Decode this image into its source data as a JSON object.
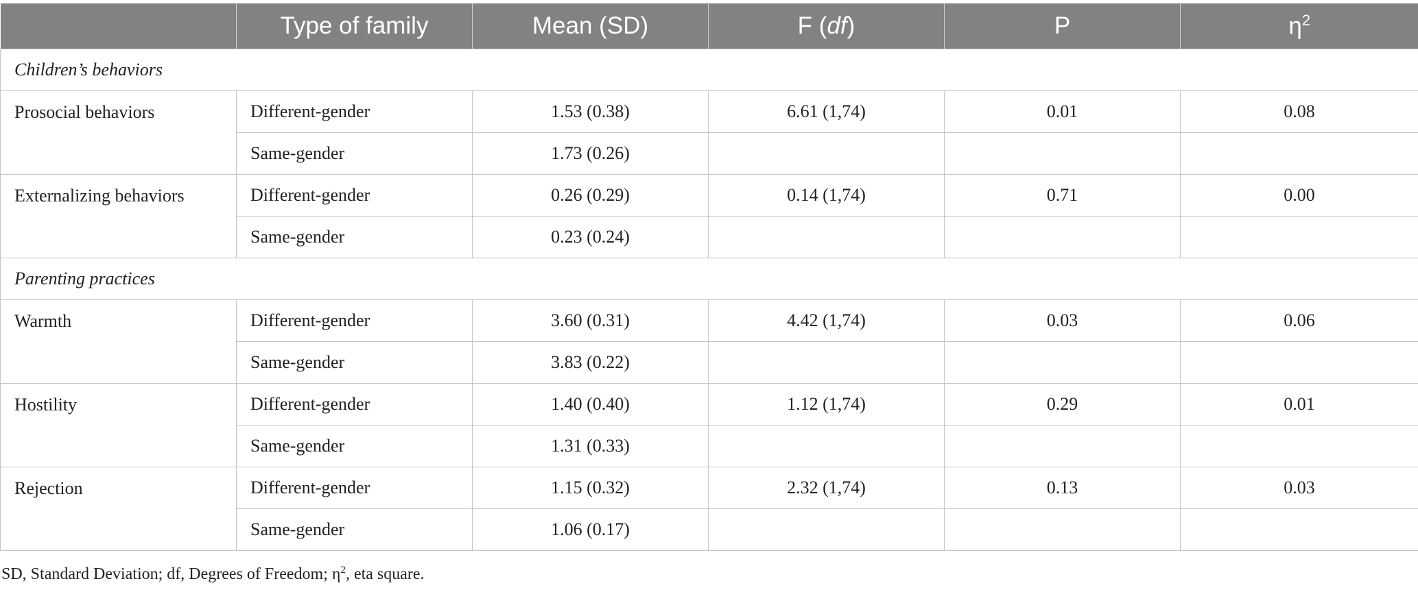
{
  "table": {
    "headers": [
      "",
      "Type of family",
      "Mean (SD)",
      "F",
      "P",
      "η"
    ],
    "header_f_italic_part": "df",
    "header_eta_superscript": "2",
    "sections": [
      {
        "label": "Children’s behaviors",
        "rows": [
          {
            "variable": "Prosocial behaviors",
            "groups": [
              {
                "family": "Different-gender",
                "mean_sd": "1.53 (0.38)",
                "f": "6.61 (1,74)",
                "p": "0.01",
                "eta2": "0.08"
              },
              {
                "family": "Same-gender",
                "mean_sd": "1.73 (0.26)",
                "f": "",
                "p": "",
                "eta2": ""
              }
            ]
          },
          {
            "variable": "Externalizing behaviors",
            "groups": [
              {
                "family": "Different-gender",
                "mean_sd": "0.26 (0.29)",
                "f": "0.14 (1,74)",
                "p": "0.71",
                "eta2": "0.00"
              },
              {
                "family": "Same-gender",
                "mean_sd": "0.23 (0.24)",
                "f": "",
                "p": "",
                "eta2": ""
              }
            ]
          }
        ]
      },
      {
        "label": "Parenting practices",
        "rows": [
          {
            "variable": "Warmth",
            "groups": [
              {
                "family": "Different-gender",
                "mean_sd": "3.60 (0.31)",
                "f": "4.42 (1,74)",
                "p": "0.03",
                "eta2": "0.06"
              },
              {
                "family": "Same-gender",
                "mean_sd": "3.83 (0.22)",
                "f": "",
                "p": "",
                "eta2": ""
              }
            ]
          },
          {
            "variable": "Hostility",
            "groups": [
              {
                "family": "Different-gender",
                "mean_sd": "1.40 (0.40)",
                "f": "1.12 (1,74)",
                "p": "0.29",
                "eta2": "0.01"
              },
              {
                "family": "Same-gender",
                "mean_sd": "1.31 (0.33)",
                "f": "",
                "p": "",
                "eta2": ""
              }
            ]
          },
          {
            "variable": "Rejection",
            "groups": [
              {
                "family": "Different-gender",
                "mean_sd": "1.15 (0.32)",
                "f": "2.32 (1,74)",
                "p": "0.13",
                "eta2": "0.03"
              },
              {
                "family": "Same-gender",
                "mean_sd": "1.06 (0.17)",
                "f": "",
                "p": "",
                "eta2": ""
              }
            ]
          }
        ]
      }
    ]
  },
  "footnote": {
    "part1": "SD, Standard Deviation; df, Degrees of Freedom; η",
    "sup": "2",
    "part2": ", eta square."
  }
}
